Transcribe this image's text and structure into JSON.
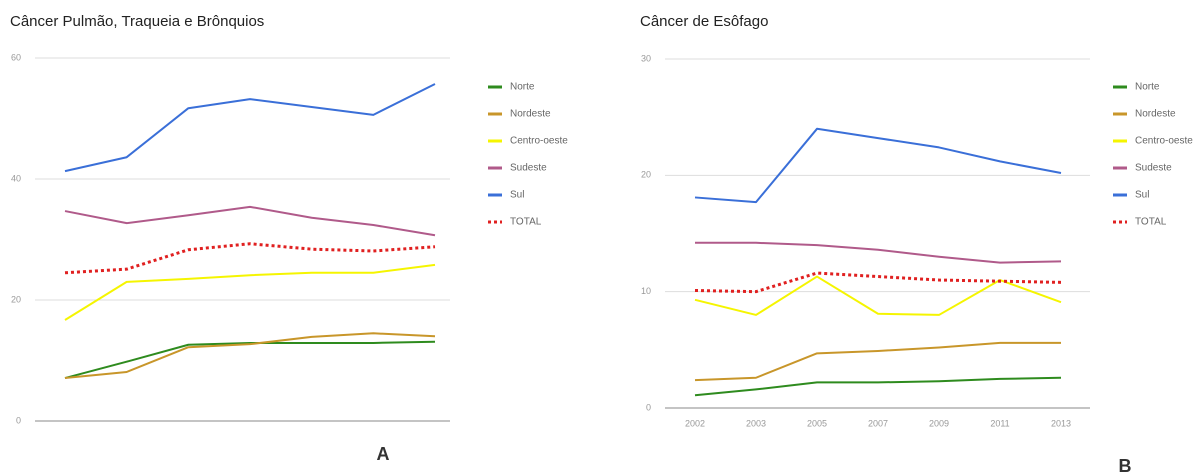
{
  "chart_data": [
    {
      "type": "line",
      "title": "Câncer Pulmão, Traqueia e Brônquios",
      "label": "A",
      "categories": [
        null,
        null,
        null,
        null,
        null,
        null,
        null
      ],
      "ylim": [
        0,
        60
      ],
      "yticks": [
        0,
        20,
        40,
        60
      ],
      "grid": true,
      "series": [
        {
          "name": "Norte",
          "color": "#2e8b1e",
          "values": [
            7.1,
            9.8,
            12.6,
            12.9,
            12.9,
            12.9,
            13.1
          ]
        },
        {
          "name": "Nordeste",
          "color": "#c8962a",
          "values": [
            7.1,
            8.1,
            12.2,
            12.7,
            13.9,
            14.5,
            14.0
          ]
        },
        {
          "name": "Centro-oeste",
          "color": "#f5f500",
          "values": [
            16.7,
            23.0,
            23.5,
            24.1,
            24.5,
            24.5,
            25.8
          ]
        },
        {
          "name": "Sudeste",
          "color": "#b05a8a",
          "values": [
            34.7,
            32.7,
            34.0,
            35.4,
            33.6,
            32.4,
            30.7
          ]
        },
        {
          "name": "Sul",
          "color": "#3a6fd8",
          "values": [
            41.3,
            43.6,
            51.7,
            53.2,
            51.9,
            50.6,
            55.7
          ]
        },
        {
          "name": "TOTAL",
          "color": "#e02020",
          "dotted": true,
          "values": [
            24.5,
            25.1,
            28.3,
            29.3,
            28.4,
            28.1,
            28.8
          ]
        }
      ]
    },
    {
      "type": "line",
      "title": "Câncer de Esôfago",
      "label": "B",
      "categories": [
        "2002",
        "2003",
        "2005",
        "2007",
        "2009",
        "2011",
        "2013"
      ],
      "ylim": [
        0,
        30
      ],
      "yticks": [
        0,
        10,
        20,
        30
      ],
      "grid": true,
      "series": [
        {
          "name": "Norte",
          "color": "#2e8b1e",
          "values": [
            1.1,
            1.6,
            2.2,
            2.2,
            2.3,
            2.5,
            2.6
          ]
        },
        {
          "name": "Nordeste",
          "color": "#c8962a",
          "values": [
            2.4,
            2.6,
            4.7,
            4.9,
            5.2,
            5.6,
            5.6
          ]
        },
        {
          "name": "Centro-oeste",
          "color": "#f5f500",
          "values": [
            9.3,
            8.0,
            11.3,
            8.1,
            8.0,
            11.0,
            9.1
          ]
        },
        {
          "name": "Sudeste",
          "color": "#b05a8a",
          "values": [
            14.2,
            14.2,
            14.0,
            13.6,
            13.0,
            12.5,
            12.6
          ]
        },
        {
          "name": "Sul",
          "color": "#3a6fd8",
          "values": [
            18.1,
            17.7,
            24.0,
            23.2,
            22.4,
            21.2,
            20.2
          ]
        },
        {
          "name": "TOTAL",
          "color": "#e02020",
          "dotted": true,
          "values": [
            10.1,
            10.0,
            11.6,
            11.3,
            11.0,
            10.9,
            10.8
          ]
        }
      ]
    }
  ]
}
